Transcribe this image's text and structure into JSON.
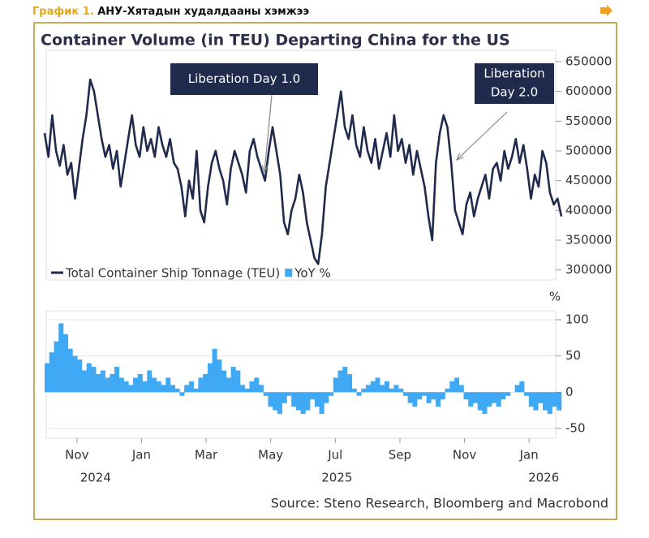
{
  "header": {
    "label": "График 1.",
    "title": "АНУ-Хятадын худалдааны хэмжээ"
  },
  "chart_data": [
    {
      "type": "line",
      "title": "Container Volume (in TEU) Departing China for the US",
      "xlim": [
        "2024-10",
        "2026-02"
      ],
      "ylim": [
        290000,
        665000
      ],
      "yticks": [
        300000,
        350000,
        400000,
        450000,
        500000,
        550000,
        600000,
        650000
      ],
      "series": [
        {
          "name": "Total Container Ship Tonnage (TEU)",
          "color": "#1f2a4d",
          "values": [
            530000,
            490000,
            560000,
            500000,
            475000,
            510000,
            460000,
            480000,
            420000,
            470000,
            520000,
            560000,
            620000,
            600000,
            560000,
            520000,
            490000,
            510000,
            470000,
            500000,
            440000,
            480000,
            520000,
            560000,
            510000,
            490000,
            540000,
            500000,
            520000,
            490000,
            540000,
            510000,
            490000,
            520000,
            480000,
            470000,
            440000,
            390000,
            450000,
            420000,
            500000,
            400000,
            380000,
            440000,
            480000,
            500000,
            470000,
            450000,
            410000,
            470000,
            500000,
            480000,
            460000,
            430000,
            500000,
            520000,
            490000,
            470000,
            450000,
            500000,
            540000,
            500000,
            460000,
            380000,
            360000,
            400000,
            420000,
            460000,
            430000,
            380000,
            350000,
            320000,
            310000,
            360000,
            440000,
            480000,
            520000,
            560000,
            600000,
            540000,
            520000,
            560000,
            510000,
            490000,
            540000,
            500000,
            480000,
            520000,
            470000,
            500000,
            530000,
            490000,
            560000,
            500000,
            520000,
            480000,
            510000,
            460000,
            500000,
            470000,
            440000,
            390000,
            350000,
            480000,
            530000,
            560000,
            540000,
            480000,
            400000,
            380000,
            360000,
            410000,
            430000,
            390000,
            420000,
            440000,
            460000,
            420000,
            470000,
            480000,
            450000,
            500000,
            470000,
            490000,
            520000,
            480000,
            510000,
            470000,
            420000,
            460000,
            440000,
            500000,
            480000,
            430000,
            410000,
            420000,
            390000
          ]
        }
      ],
      "annotations": [
        {
          "lines": [
            "Liberation Day 1.0"
          ]
        },
        {
          "lines": [
            "Liberation",
            "Day 2.0"
          ]
        }
      ]
    },
    {
      "type": "bar",
      "y_unit": "%",
      "xlim": [
        "2024-10",
        "2026-02"
      ],
      "ylim": [
        -62,
        112
      ],
      "yticks": [
        -50,
        0,
        50,
        100
      ],
      "grid": true,
      "xticks": [
        {
          "value": "2024-11",
          "label": "Nov"
        },
        {
          "value": "2025-01",
          "label": "Jan"
        },
        {
          "value": "2025-03",
          "label": "Mar"
        },
        {
          "value": "2025-05",
          "label": "May"
        },
        {
          "value": "2025-07",
          "label": "Jul"
        },
        {
          "value": "2025-09",
          "label": "Sep"
        },
        {
          "value": "2025-11",
          "label": "Nov"
        },
        {
          "value": "2026-01",
          "label": "Jan"
        }
      ],
      "years": [
        {
          "value": "2024-11",
          "label": "2024"
        },
        {
          "value": "2025-07",
          "label": "2025"
        },
        {
          "value": "2026-01",
          "label": "2026"
        }
      ],
      "series": [
        {
          "name": "YoY %",
          "color": "#3fa9f5",
          "values": [
            40,
            55,
            70,
            95,
            80,
            60,
            50,
            45,
            30,
            40,
            35,
            25,
            30,
            20,
            25,
            35,
            20,
            15,
            10,
            20,
            25,
            15,
            30,
            20,
            15,
            10,
            20,
            10,
            5,
            -5,
            10,
            15,
            5,
            20,
            25,
            40,
            60,
            45,
            30,
            20,
            35,
            30,
            10,
            5,
            15,
            20,
            10,
            -5,
            -20,
            -25,
            -30,
            -15,
            -5,
            -20,
            -25,
            -30,
            -25,
            -10,
            -20,
            -30,
            -15,
            -5,
            20,
            30,
            35,
            25,
            5,
            -5,
            5,
            10,
            15,
            20,
            10,
            15,
            5,
            10,
            5,
            -5,
            -15,
            -20,
            -10,
            -5,
            -15,
            -10,
            -20,
            -10,
            5,
            15,
            20,
            10,
            -10,
            -20,
            -15,
            -25,
            -30,
            -20,
            -15,
            -20,
            -10,
            -5,
            0,
            10,
            15,
            -5,
            -20,
            -25,
            -15,
            -25,
            -30,
            -20,
            -25
          ]
        }
      ],
      "source": "Source: Steno Research, Bloomberg and Macrobond"
    }
  ]
}
